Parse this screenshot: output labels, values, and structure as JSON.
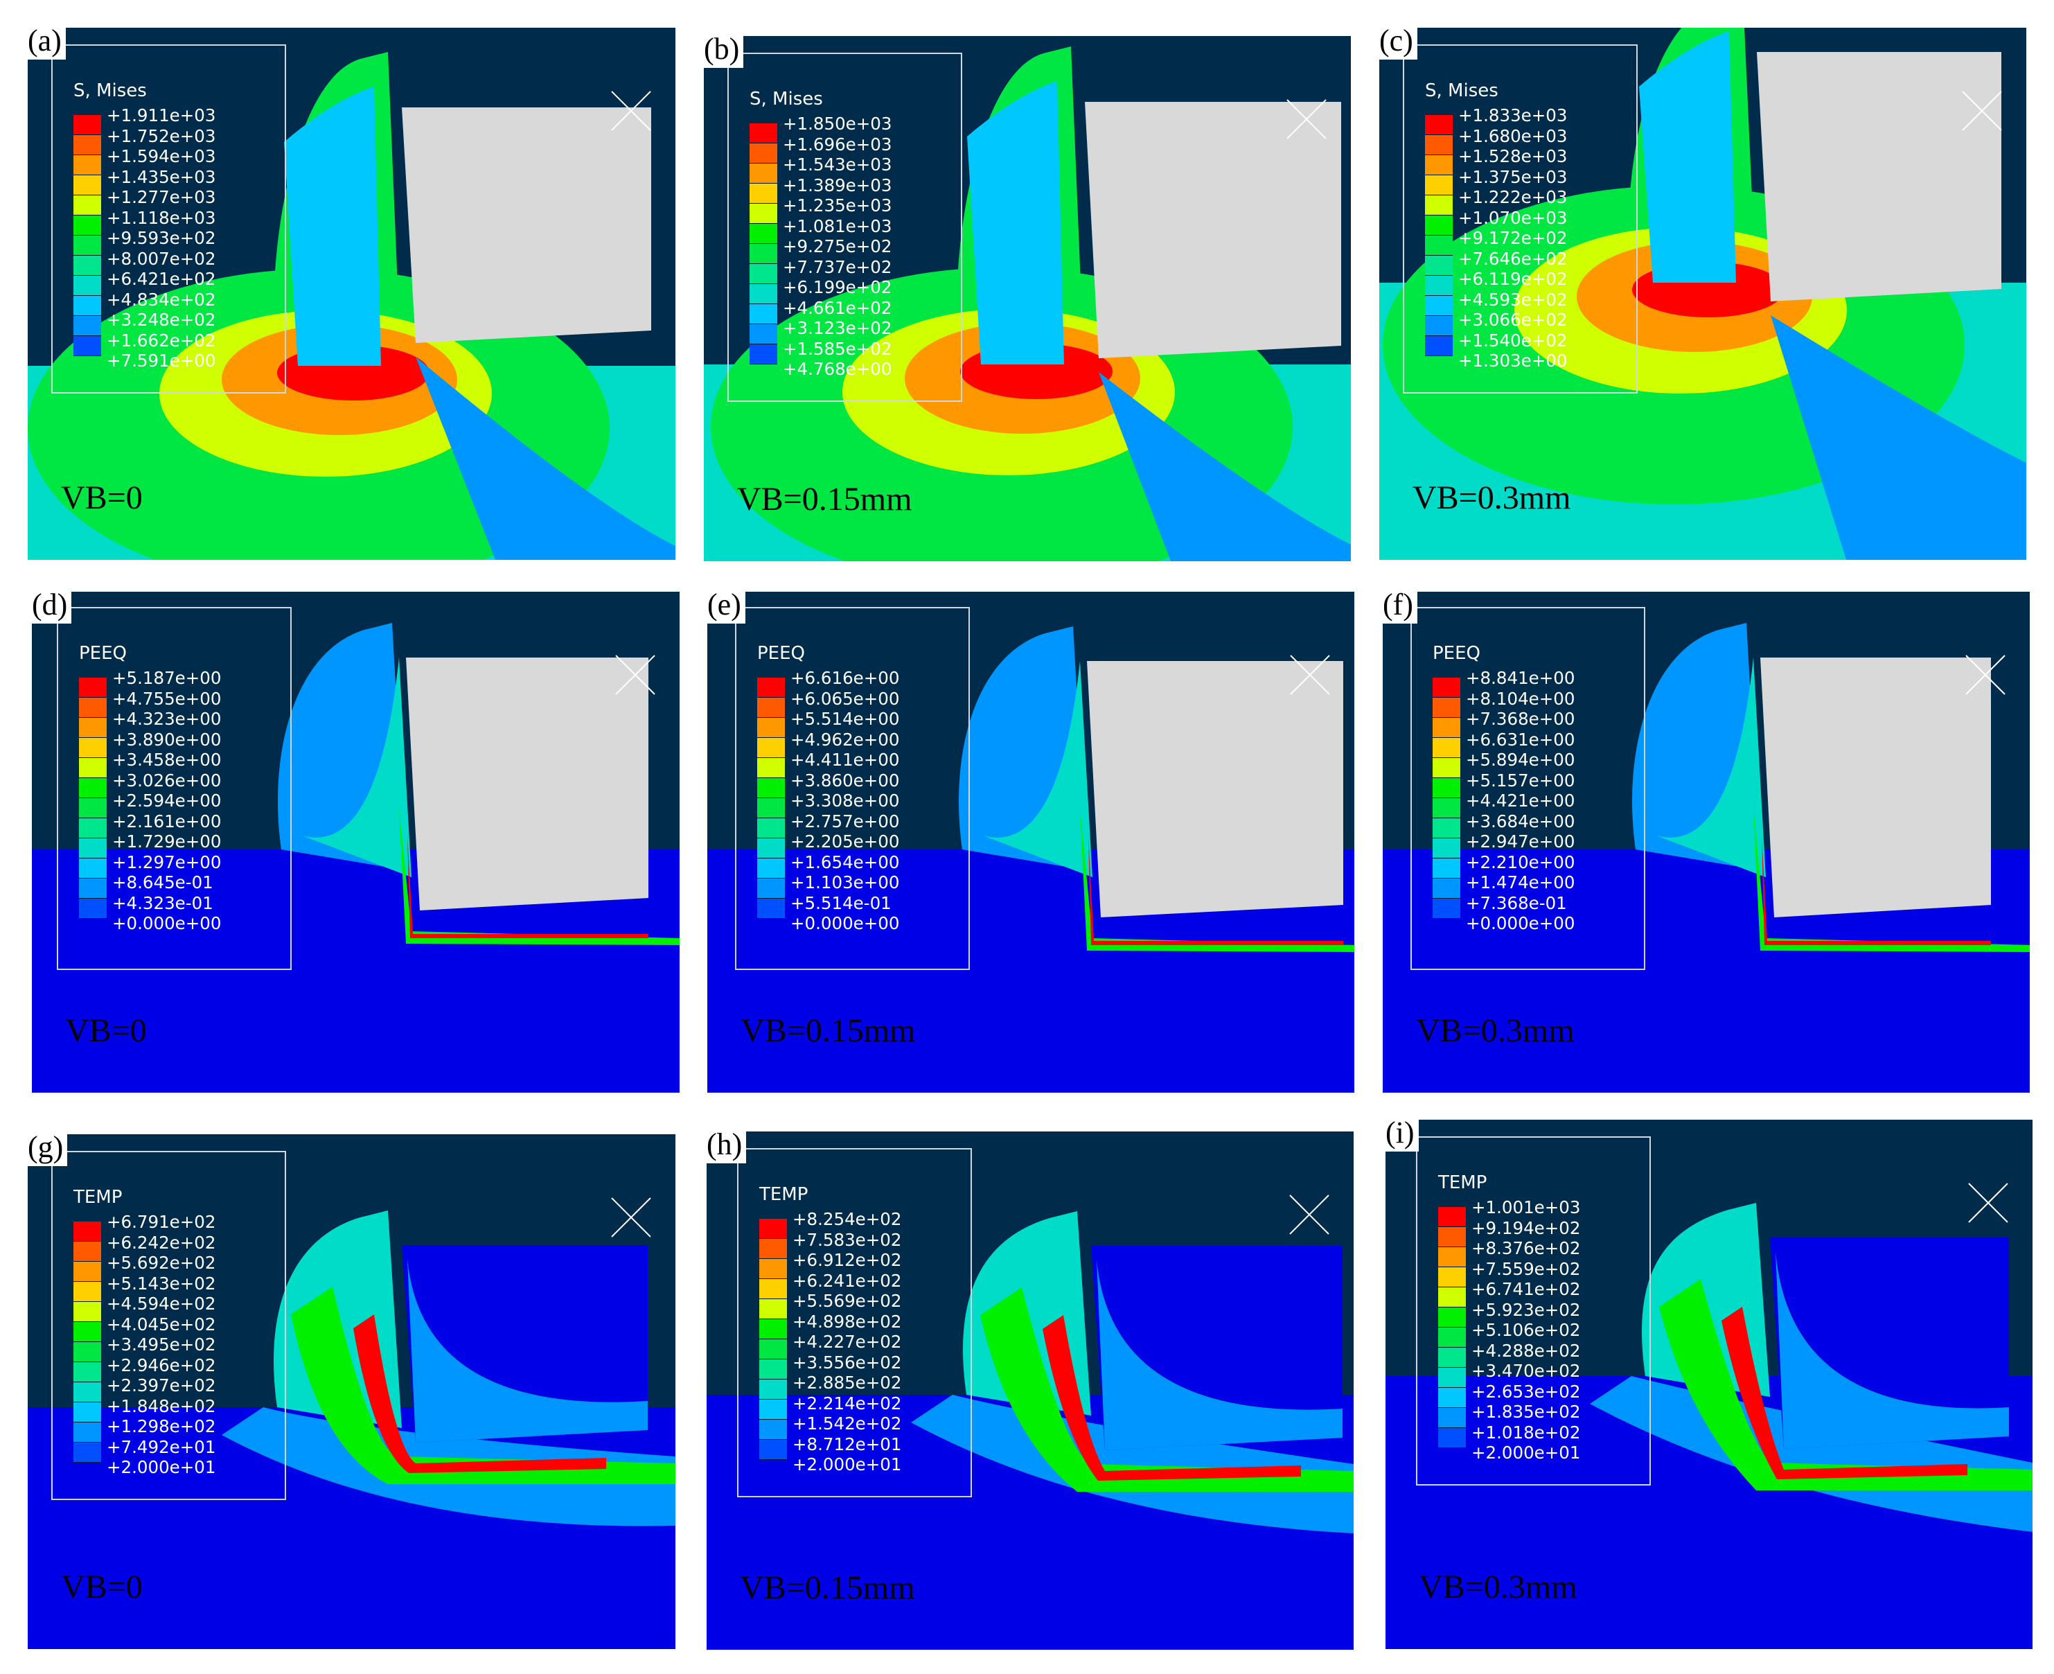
{
  "colormap": [
    "#ff0000",
    "#ff5a00",
    "#ff9800",
    "#ffd000",
    "#cfff00",
    "#00f000",
    "#00e642",
    "#00e68c",
    "#00dcc8",
    "#00c8ff",
    "#0096ff",
    "#0050ff",
    "#0000e6"
  ],
  "panels": [
    {
      "label": "(a)",
      "vb": "VB=0",
      "legend_title": "S, Mises",
      "values": [
        "+1.911e+03",
        "+1.752e+03",
        "+1.594e+03",
        "+1.435e+03",
        "+1.277e+03",
        "+1.118e+03",
        "+9.593e+02",
        "+8.007e+02",
        "+6.421e+02",
        "+4.834e+02",
        "+3.248e+02",
        "+1.662e+02",
        "+7.591e+00"
      ]
    },
    {
      "label": "(b)",
      "vb": "VB=0.15mm",
      "legend_title": "S, Mises",
      "values": [
        "+1.850e+03",
        "+1.696e+03",
        "+1.543e+03",
        "+1.389e+03",
        "+1.235e+03",
        "+1.081e+03",
        "+9.275e+02",
        "+7.737e+02",
        "+6.199e+02",
        "+4.661e+02",
        "+3.123e+02",
        "+1.585e+02",
        "+4.768e+00"
      ]
    },
    {
      "label": "(c)",
      "vb": "VB=0.3mm",
      "legend_title": "S, Mises",
      "values": [
        "+1.833e+03",
        "+1.680e+03",
        "+1.528e+03",
        "+1.375e+03",
        "+1.222e+03",
        "+1.070e+03",
        "+9.172e+02",
        "+7.646e+02",
        "+6.119e+02",
        "+4.593e+02",
        "+3.066e+02",
        "+1.540e+02",
        "+1.303e+00"
      ]
    },
    {
      "label": "(d)",
      "vb": "VB=0",
      "legend_title": "PEEQ",
      "values": [
        "+5.187e+00",
        "+4.755e+00",
        "+4.323e+00",
        "+3.890e+00",
        "+3.458e+00",
        "+3.026e+00",
        "+2.594e+00",
        "+2.161e+00",
        "+1.729e+00",
        "+1.297e+00",
        "+8.645e-01",
        "+4.323e-01",
        "+0.000e+00"
      ]
    },
    {
      "label": "(e)",
      "vb": "VB=0.15mm",
      "legend_title": "PEEQ",
      "values": [
        "+6.616e+00",
        "+6.065e+00",
        "+5.514e+00",
        "+4.962e+00",
        "+4.411e+00",
        "+3.860e+00",
        "+3.308e+00",
        "+2.757e+00",
        "+2.205e+00",
        "+1.654e+00",
        "+1.103e+00",
        "+5.514e-01",
        "+0.000e+00"
      ]
    },
    {
      "label": "(f)",
      "vb": "VB=0.3mm",
      "legend_title": "PEEQ",
      "values": [
        "+8.841e+00",
        "+8.104e+00",
        "+7.368e+00",
        "+6.631e+00",
        "+5.894e+00",
        "+5.157e+00",
        "+4.421e+00",
        "+3.684e+00",
        "+2.947e+00",
        "+2.210e+00",
        "+1.474e+00",
        "+7.368e-01",
        "+0.000e+00"
      ]
    },
    {
      "label": "(g)",
      "vb": "VB=0",
      "legend_title": "TEMP",
      "values": [
        "+6.791e+02",
        "+6.242e+02",
        "+5.692e+02",
        "+5.143e+02",
        "+4.594e+02",
        "+4.045e+02",
        "+3.495e+02",
        "+2.946e+02",
        "+2.397e+02",
        "+1.848e+02",
        "+1.298e+02",
        "+7.492e+01",
        "+2.000e+01"
      ]
    },
    {
      "label": "(h)",
      "vb": "VB=0.15mm",
      "legend_title": "TEMP",
      "values": [
        "+8.254e+02",
        "+7.583e+02",
        "+6.912e+02",
        "+6.241e+02",
        "+5.569e+02",
        "+4.898e+02",
        "+4.227e+02",
        "+3.556e+02",
        "+2.885e+02",
        "+2.214e+02",
        "+1.542e+02",
        "+8.712e+01",
        "+2.000e+01"
      ]
    },
    {
      "label": "(i)",
      "vb": "VB=0.3mm",
      "legend_title": "TEMP",
      "values": [
        "+1.001e+03",
        "+9.194e+02",
        "+8.376e+02",
        "+7.559e+02",
        "+6.741e+02",
        "+5.923e+02",
        "+5.106e+02",
        "+4.288e+02",
        "+3.470e+02",
        "+2.653e+02",
        "+1.835e+02",
        "+1.018e+02",
        "+2.000e+01"
      ]
    }
  ]
}
